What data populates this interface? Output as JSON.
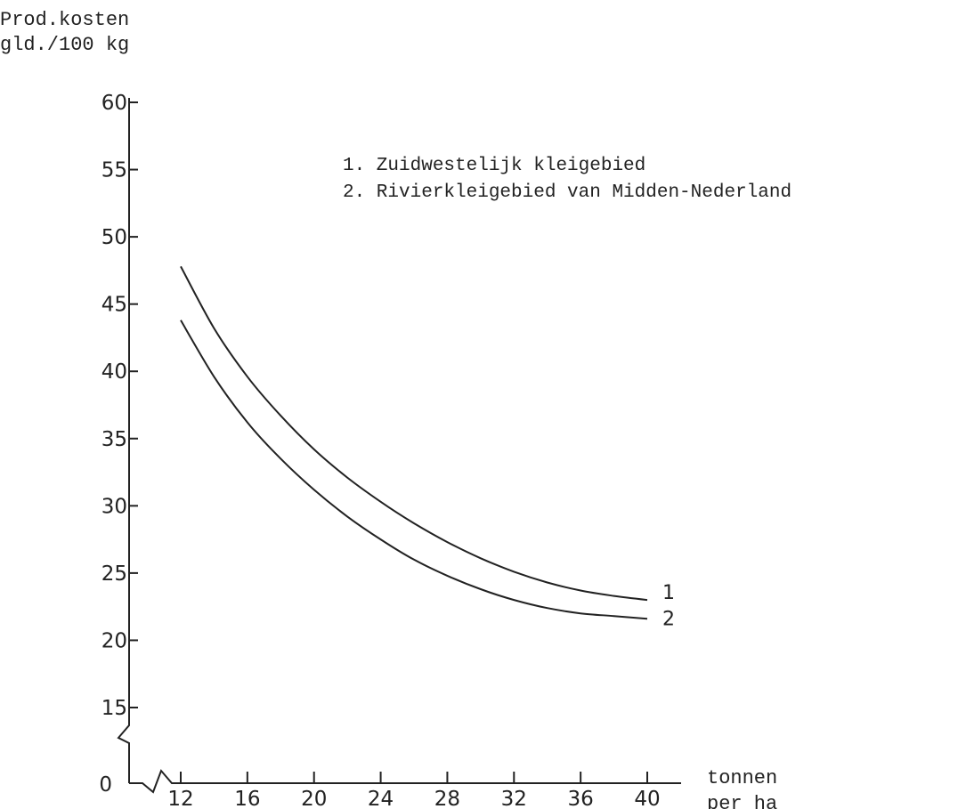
{
  "chart_data": {
    "type": "line",
    "ylabel_lines": [
      "Prod.kosten",
      "gld./100 kg"
    ],
    "xlabel_lines": [
      "tonnen",
      "per ha"
    ],
    "x_ticks": [
      12,
      16,
      20,
      24,
      28,
      32,
      36,
      40
    ],
    "y_ticks": [
      15,
      20,
      25,
      30,
      35,
      40,
      45,
      50,
      55,
      60
    ],
    "y_origin_label": "0",
    "xlim": [
      12,
      40
    ],
    "ylim": [
      15,
      60
    ],
    "axis_breaks": true,
    "grid": false,
    "legend": {
      "placement": "top-right",
      "entries": [
        "1. Zuidwestelijk kleigebied",
        "2. Rivierkleigebied van Midden-Nederland"
      ]
    },
    "series": [
      {
        "label": "1",
        "x": [
          12,
          14,
          16,
          18,
          20,
          22,
          24,
          26,
          28,
          30,
          32,
          34,
          36,
          38,
          40
        ],
        "y": [
          47.8,
          43.2,
          39.6,
          36.7,
          34.2,
          32.1,
          30.3,
          28.7,
          27.3,
          26.1,
          25.1,
          24.3,
          23.7,
          23.3,
          23.0
        ]
      },
      {
        "label": "2",
        "x": [
          12,
          14,
          16,
          18,
          20,
          22,
          24,
          26,
          28,
          30,
          32,
          34,
          36,
          38,
          40
        ],
        "y": [
          43.8,
          39.6,
          36.2,
          33.5,
          31.2,
          29.2,
          27.5,
          26.0,
          24.8,
          23.8,
          23.0,
          22.4,
          22.0,
          21.8,
          21.6
        ]
      }
    ]
  }
}
